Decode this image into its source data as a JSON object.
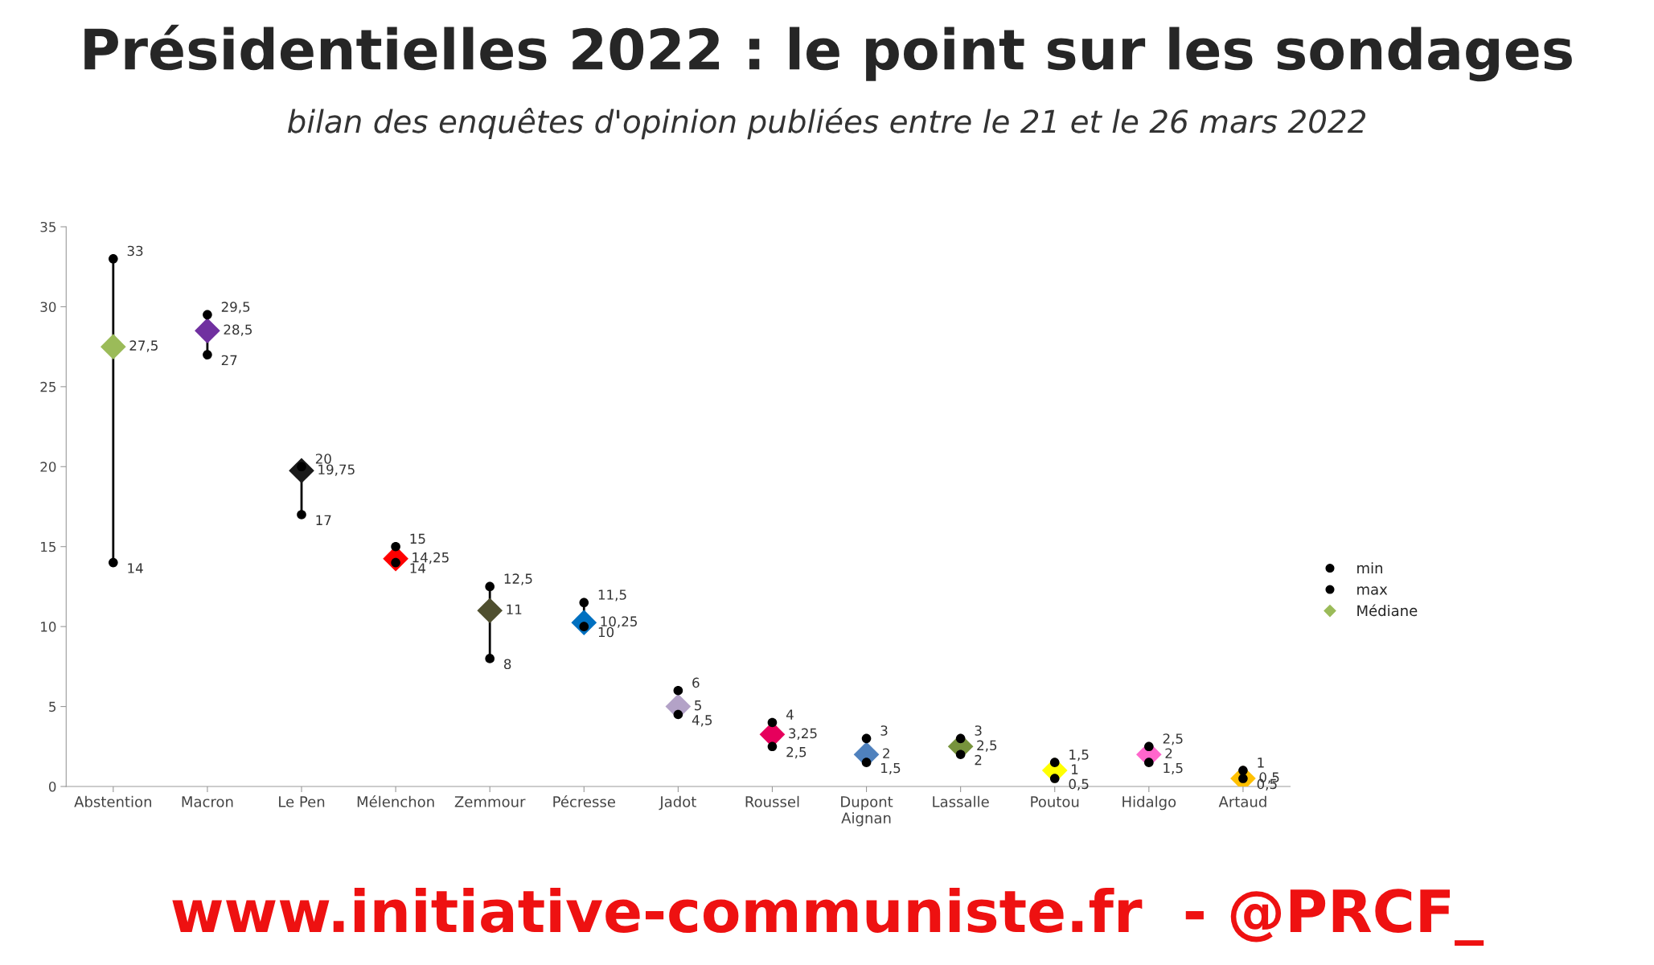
{
  "chart_data": {
    "type": "scatter",
    "title": "Présidentielles 2022 : le point sur les sondages",
    "subtitle": "bilan des enquêtes d'opinion publiées entre le 21 et le 26 mars 2022",
    "categories": [
      "Abstention",
      "Macron",
      "Le Pen",
      "Mélenchon",
      "Zemmour",
      "Pécresse",
      "Jadot",
      "Roussel",
      "Dupont\nAignan",
      "Lassalle",
      "Poutou",
      "Hidalgo",
      "Artaud"
    ],
    "series": [
      {
        "name": "min",
        "color": "#000000",
        "marker": "circle",
        "values": [
          14,
          27,
          17,
          14,
          8,
          10,
          4.5,
          2.5,
          1.5,
          2,
          0.5,
          1.5,
          0.5
        ],
        "value_labels": [
          "14",
          "27",
          "17",
          "14",
          "8",
          "10",
          "4,5",
          "2,5",
          "1,5",
          "2",
          "0,5",
          "1,5",
          "0,5"
        ]
      },
      {
        "name": "max",
        "color": "#000000",
        "marker": "circle",
        "values": [
          33,
          29.5,
          20,
          15,
          12.5,
          11.5,
          6,
          4,
          3,
          3,
          1.5,
          2.5,
          1
        ],
        "value_labels": [
          "33",
          "29,5",
          "20",
          "15",
          "12,5",
          "11,5",
          "6",
          "4",
          "3",
          "3",
          "1,5",
          "2,5",
          "1"
        ]
      },
      {
        "name": "Médiane",
        "color": "#9bbb59",
        "marker": "diamond",
        "colors": [
          "#9bbb59",
          "#7030a0",
          "#1a1a1a",
          "#ff0000",
          "#4f4f2f",
          "#0070c0",
          "#b3a2c7",
          "#e6005c",
          "#4f81bd",
          "#77933c",
          "#ffff00",
          "#ff66cc",
          "#ffc000"
        ],
        "values": [
          27.5,
          28.5,
          19.75,
          14.25,
          11,
          10.25,
          5,
          3.25,
          2,
          2.5,
          1,
          2,
          0.5
        ],
        "value_labels": [
          "27,5",
          "28,5",
          "19,75",
          "14,25",
          "11",
          "10,25",
          "5",
          "3,25",
          "2",
          "2,5",
          "1",
          "2",
          "0,5"
        ]
      }
    ],
    "ylim": [
      0,
      35
    ],
    "yticks": [
      0,
      5,
      10,
      15,
      20,
      25,
      30,
      35
    ],
    "grid": false,
    "legend": "right",
    "annotations": [
      "www.initiative-communiste.fr  - @PRCF_"
    ]
  }
}
